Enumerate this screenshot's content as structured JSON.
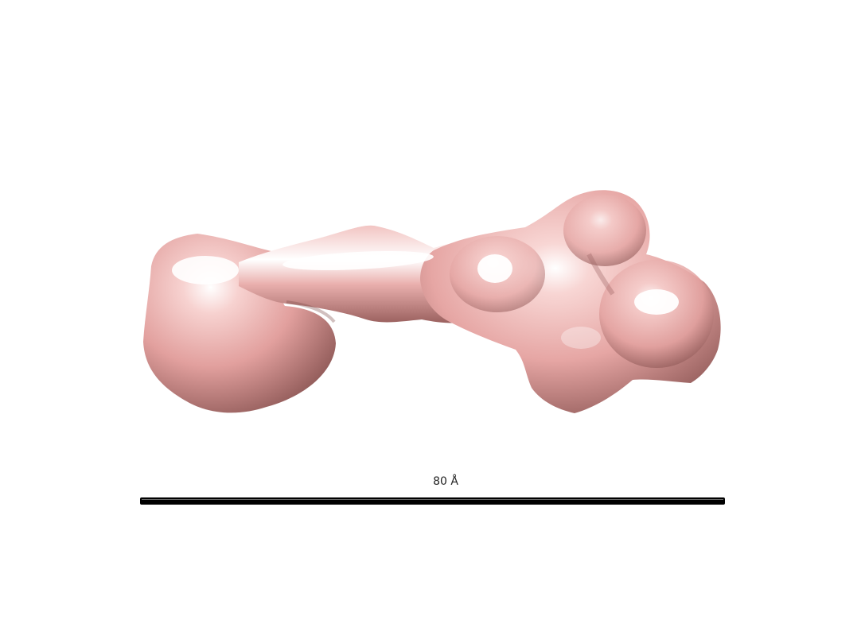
{
  "scene": {
    "background_color": "#ffffff",
    "surface_color": "#e8a7a5",
    "highlight_color": "#ffffff",
    "shadow_color": "#7a4a49"
  },
  "scale_bar": {
    "label": "80 Å",
    "color": "#000000"
  }
}
